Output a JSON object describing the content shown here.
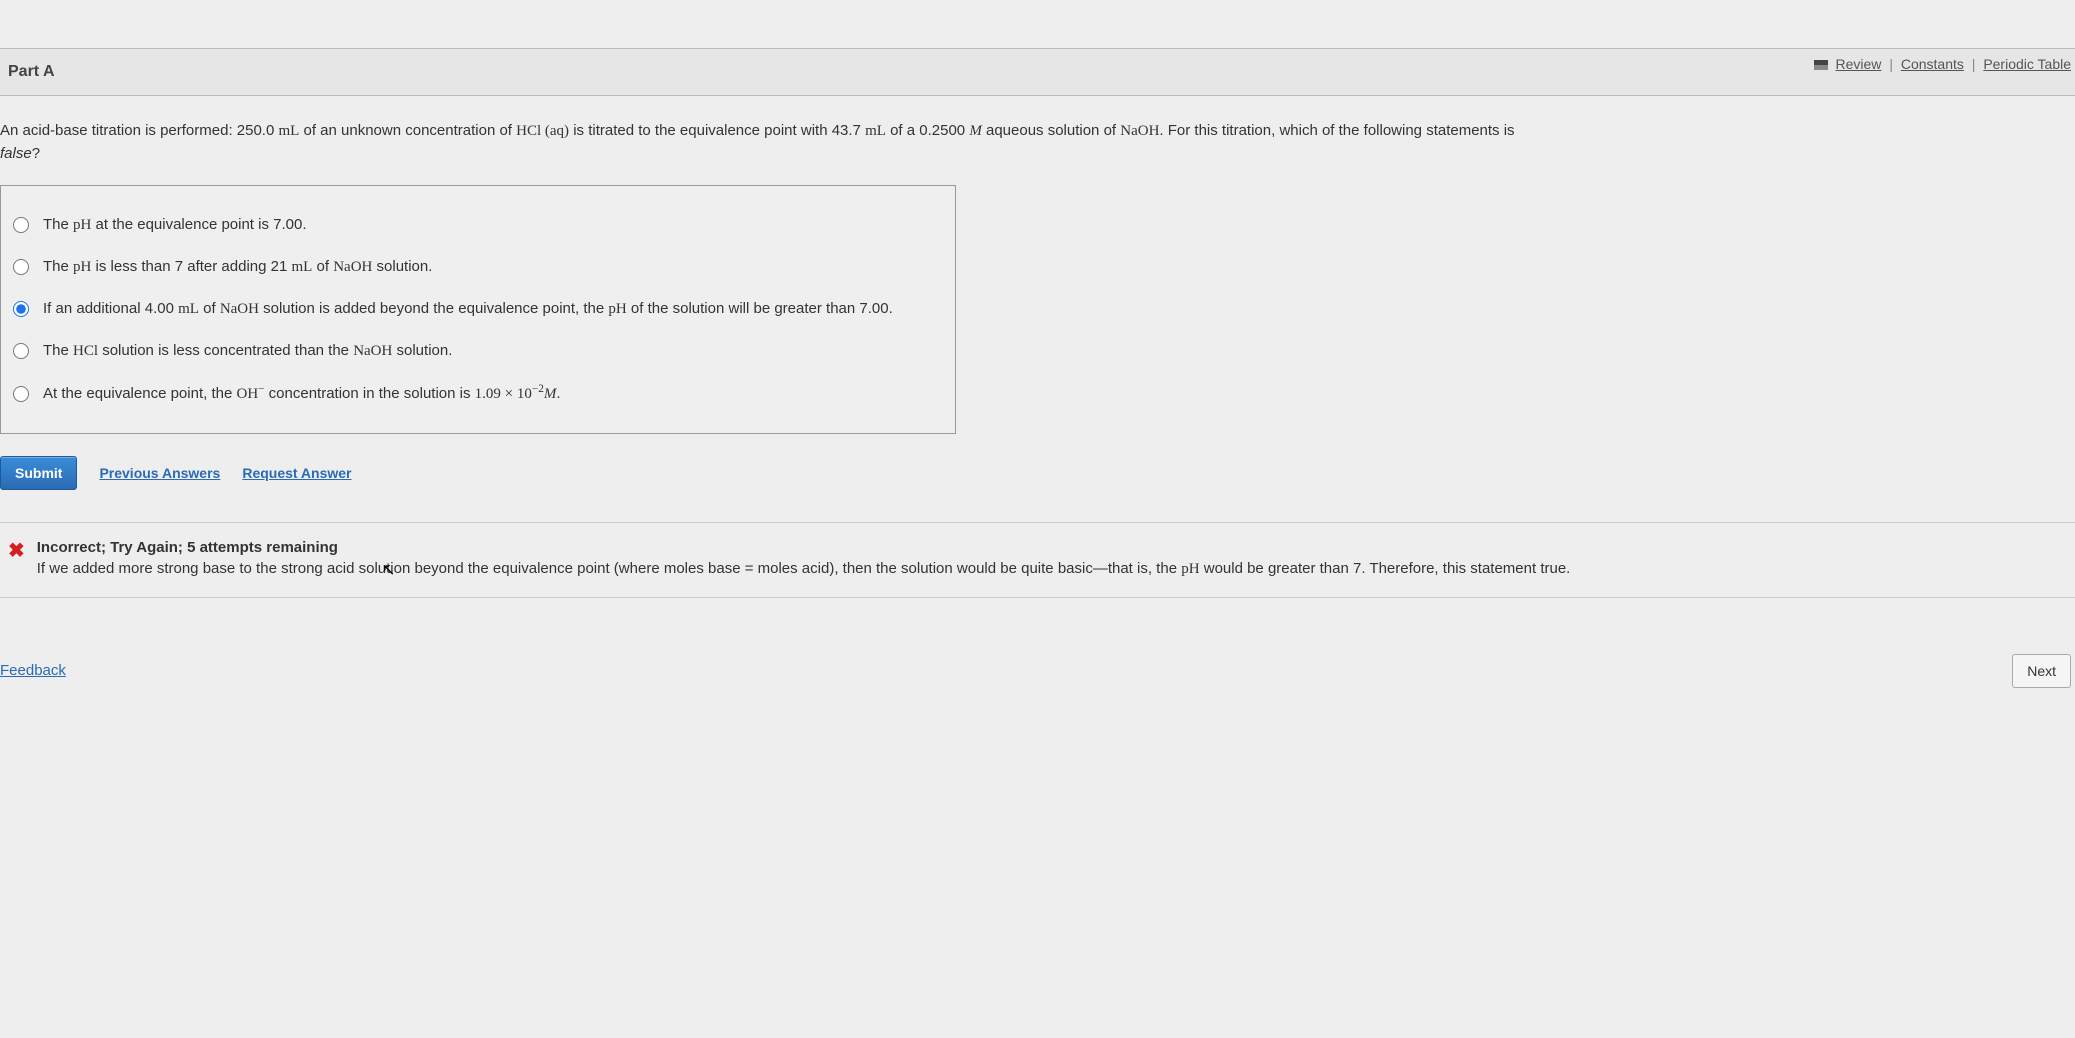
{
  "topLinks": {
    "review": "Review",
    "constants": "Constants",
    "periodic": "Periodic Table"
  },
  "part": {
    "label": "Part A"
  },
  "question": {
    "prefix": "An acid-base titration is performed: 250.0 ",
    "unit1": "mL",
    "mid1": " of an unknown concentration of ",
    "hcl": "HCl (aq)",
    "mid2": " is titrated to the equivalence point with 43.7 ",
    "unit2": "mL",
    "mid3": " of a 0.2500 ",
    "molar": "M",
    "mid4": " aqueous solution of ",
    "naoh": "NaOH",
    "suffix": ". For this titration, which of the following statements is ",
    "false_word": "false",
    "qmark": "?"
  },
  "options": {
    "a": {
      "t1": "The ",
      "ph": "pH",
      "t2": " at the equivalence point is 7.00."
    },
    "b": {
      "t1": "The ",
      "ph": "pH",
      "t2": " is less than 7 after adding 21 ",
      "ml": "mL",
      "t3": " of ",
      "naoh": "NaOH",
      "t4": " solution."
    },
    "c": {
      "t1": "If an additional 4.00 ",
      "ml": "mL",
      "t2": " of ",
      "naoh": "NaOH",
      "t3": " solution is added beyond the equivalence point, the ",
      "ph": "pH",
      "t4": " of the solution will be greater than 7.00."
    },
    "d": {
      "t1": "The ",
      "hcl": "HCl",
      "t2": " solution is less concentrated than the ",
      "naoh": "NaOH",
      "t3": " solution."
    },
    "e": {
      "t1": "At the equivalence point, the ",
      "oh": "OH",
      "minus": "−",
      "t2": " concentration in the solution is ",
      "val": "1.09 × 10",
      "exp": "−2",
      "molar": "M",
      "period": "."
    }
  },
  "selectedOption": "c",
  "actions": {
    "submit": "Submit",
    "previous": "Previous Answers",
    "request": "Request Answer"
  },
  "feedback": {
    "title": "Incorrect; Try Again; 5 attempts remaining",
    "body1": "If we added more strong base to the strong acid solution beyond the equivalence point (where moles base = moles acid), then the solution would be quite basic—that is, the ",
    "ph": "pH",
    "body2": " would be greater than 7. Therefore, this statement true."
  },
  "bottom": {
    "feedback": "Feedback",
    "next": "Next"
  }
}
